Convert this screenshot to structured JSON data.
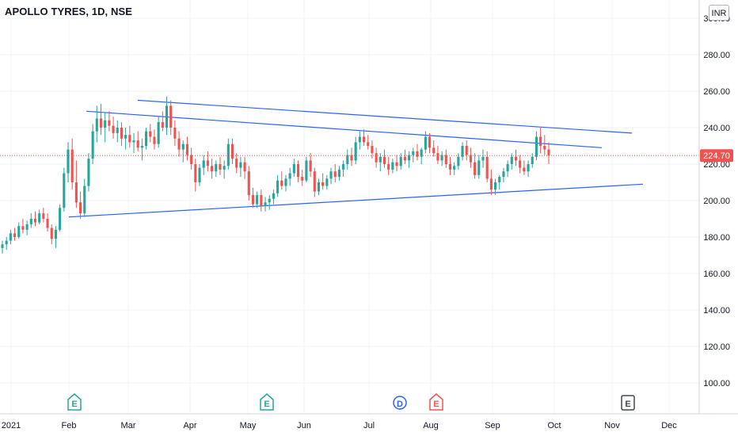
{
  "title": "APOLLO TYRES, 1D, NSE",
  "currency": "INR",
  "last_price_label": "224.70",
  "y_axis_ticks": [
    "300.00",
    "280.00",
    "260.00",
    "240.00",
    "220.00",
    "200.00",
    "180.00",
    "160.00",
    "140.00",
    "120.00",
    "100.00"
  ],
  "x_axis_ticks": [
    "2021",
    "Feb",
    "Mar",
    "Apr",
    "May",
    "Jun",
    "Jul",
    "Aug",
    "Sep",
    "Oct",
    "Nov",
    "Dec"
  ],
  "event_markers": [
    {
      "symbol": "E",
      "month": "Feb",
      "color": "#26a69a"
    },
    {
      "symbol": "E",
      "month": "May",
      "color": "#26a69a"
    },
    {
      "symbol": "D",
      "month": "Jul",
      "color": "#2962ff"
    },
    {
      "symbol": "E",
      "month": "Aug",
      "color": "#ef5350"
    },
    {
      "symbol": "E",
      "month": "Nov",
      "color": "#434651"
    }
  ],
  "colors": {
    "up": "#26a69a",
    "down": "#ef5350",
    "trendline": "#2962ff",
    "price_line": "#ef5350",
    "grid": "#f0f3fa"
  },
  "chart_data": {
    "type": "candlestick",
    "title": "APOLLO TYRES, 1D, NSE",
    "ylim": [
      90,
      305
    ],
    "last_price": 224.7,
    "ohlc": [
      [
        174,
        178,
        171,
        176
      ],
      [
        176,
        180,
        173,
        178
      ],
      [
        178,
        184,
        176,
        182
      ],
      [
        182,
        185,
        178,
        180
      ],
      [
        180,
        188,
        179,
        186
      ],
      [
        186,
        190,
        182,
        184
      ],
      [
        184,
        189,
        181,
        187
      ],
      [
        187,
        193,
        185,
        190
      ],
      [
        190,
        194,
        186,
        188
      ],
      [
        188,
        195,
        187,
        193
      ],
      [
        193,
        196,
        188,
        190
      ],
      [
        190,
        193,
        183,
        185
      ],
      [
        185,
        187,
        176,
        179
      ],
      [
        179,
        186,
        174,
        184
      ],
      [
        184,
        198,
        183,
        196
      ],
      [
        196,
        218,
        194,
        215
      ],
      [
        215,
        232,
        210,
        228
      ],
      [
        228,
        234,
        206,
        210
      ],
      [
        210,
        222,
        196,
        199
      ],
      [
        199,
        205,
        190,
        193
      ],
      [
        193,
        212,
        191,
        208
      ],
      [
        208,
        226,
        205,
        223
      ],
      [
        223,
        242,
        220,
        238
      ],
      [
        238,
        252,
        232,
        245
      ],
      [
        245,
        253,
        236,
        240
      ],
      [
        240,
        248,
        232,
        244
      ],
      [
        244,
        249,
        238,
        241
      ],
      [
        241,
        246,
        234,
        237
      ],
      [
        237,
        244,
        232,
        240
      ],
      [
        240,
        243,
        230,
        234
      ],
      [
        234,
        240,
        228,
        236
      ],
      [
        236,
        241,
        229,
        232
      ],
      [
        232,
        237,
        226,
        233
      ],
      [
        233,
        238,
        227,
        229
      ],
      [
        229,
        234,
        222,
        230
      ],
      [
        230,
        240,
        228,
        238
      ],
      [
        238,
        242,
        232,
        235
      ],
      [
        235,
        239,
        228,
        231
      ],
      [
        231,
        246,
        229,
        243
      ],
      [
        243,
        249,
        238,
        240
      ],
      [
        240,
        257,
        236,
        252
      ],
      [
        252,
        255,
        236,
        240
      ],
      [
        240,
        244,
        230,
        234
      ],
      [
        234,
        238,
        224,
        228
      ],
      [
        228,
        233,
        221,
        231
      ],
      [
        231,
        235,
        222,
        225
      ],
      [
        225,
        229,
        217,
        220
      ],
      [
        220,
        223,
        205,
        210
      ],
      [
        210,
        220,
        208,
        218
      ],
      [
        218,
        225,
        214,
        222
      ],
      [
        222,
        227,
        216,
        219
      ],
      [
        219,
        223,
        212,
        216
      ],
      [
        216,
        222,
        213,
        220
      ],
      [
        220,
        224,
        214,
        217
      ],
      [
        217,
        222,
        212,
        219
      ],
      [
        219,
        234,
        217,
        231
      ],
      [
        231,
        234,
        220,
        223
      ],
      [
        223,
        226,
        215,
        218
      ],
      [
        218,
        224,
        213,
        221
      ],
      [
        221,
        224,
        212,
        216
      ],
      [
        216,
        219,
        200,
        203
      ],
      [
        203,
        207,
        196,
        198
      ],
      [
        198,
        205,
        196,
        203
      ],
      [
        203,
        206,
        194,
        197
      ],
      [
        197,
        202,
        194,
        199
      ],
      [
        199,
        203,
        195,
        201
      ],
      [
        201,
        206,
        198,
        204
      ],
      [
        204,
        214,
        202,
        211
      ],
      [
        211,
        216,
        206,
        208
      ],
      [
        208,
        214,
        205,
        212
      ],
      [
        212,
        218,
        208,
        215
      ],
      [
        215,
        223,
        213,
        220
      ],
      [
        220,
        222,
        210,
        213
      ],
      [
        213,
        217,
        208,
        211
      ],
      [
        211,
        224,
        210,
        222
      ],
      [
        222,
        226,
        213,
        216
      ],
      [
        216,
        218,
        202,
        205
      ],
      [
        205,
        212,
        203,
        210
      ],
      [
        210,
        215,
        206,
        208
      ],
      [
        208,
        214,
        206,
        212
      ],
      [
        212,
        218,
        209,
        216
      ],
      [
        216,
        220,
        210,
        213
      ],
      [
        213,
        219,
        211,
        217
      ],
      [
        217,
        222,
        213,
        220
      ],
      [
        220,
        228,
        217,
        225
      ],
      [
        225,
        229,
        219,
        222
      ],
      [
        222,
        235,
        220,
        232
      ],
      [
        232,
        238,
        228,
        235
      ],
      [
        235,
        239,
        230,
        232
      ],
      [
        232,
        236,
        228,
        230
      ],
      [
        230,
        233,
        223,
        226
      ],
      [
        226,
        229,
        218,
        221
      ],
      [
        221,
        226,
        216,
        224
      ],
      [
        224,
        228,
        218,
        220
      ],
      [
        220,
        224,
        214,
        217
      ],
      [
        217,
        223,
        215,
        221
      ],
      [
        221,
        225,
        216,
        219
      ],
      [
        219,
        226,
        217,
        224
      ],
      [
        224,
        228,
        220,
        222
      ],
      [
        222,
        227,
        218,
        225
      ],
      [
        225,
        229,
        221,
        227
      ],
      [
        227,
        231,
        222,
        224
      ],
      [
        224,
        229,
        220,
        228
      ],
      [
        228,
        238,
        226,
        235
      ],
      [
        235,
        237,
        226,
        229
      ],
      [
        229,
        233,
        224,
        226
      ],
      [
        226,
        230,
        220,
        222
      ],
      [
        222,
        227,
        219,
        225
      ],
      [
        225,
        228,
        218,
        220
      ],
      [
        220,
        224,
        214,
        217
      ],
      [
        217,
        221,
        214,
        219
      ],
      [
        219,
        226,
        217,
        224
      ],
      [
        224,
        232,
        222,
        230
      ],
      [
        230,
        233,
        222,
        225
      ],
      [
        225,
        229,
        218,
        221
      ],
      [
        221,
        226,
        212,
        214
      ],
      [
        214,
        225,
        212,
        222
      ],
      [
        222,
        228,
        218,
        224
      ],
      [
        224,
        227,
        210,
        212
      ],
      [
        212,
        217,
        203,
        206
      ],
      [
        206,
        212,
        203,
        210
      ],
      [
        210,
        214,
        206,
        213
      ],
      [
        213,
        218,
        210,
        216
      ],
      [
        216,
        222,
        213,
        220
      ],
      [
        220,
        226,
        217,
        224
      ],
      [
        224,
        228,
        219,
        222
      ],
      [
        222,
        225,
        215,
        218
      ],
      [
        218,
        222,
        214,
        216
      ],
      [
        216,
        222,
        213,
        220
      ],
      [
        220,
        226,
        218,
        224
      ],
      [
        224,
        238,
        222,
        235
      ],
      [
        235,
        240,
        226,
        230
      ],
      [
        230,
        236,
        225,
        228
      ],
      [
        228,
        232,
        220,
        224.7
      ]
    ],
    "trendlines": [
      {
        "from": [
          "Feb",
          249
        ],
        "to": [
          "Oct",
          229
        ],
        "label": ""
      },
      {
        "from": [
          "Mar",
          255
        ],
        "to": [
          "Nov",
          237
        ],
        "label": ""
      },
      {
        "from": [
          "Feb",
          191
        ],
        "to": [
          "Nov",
          209
        ],
        "label": ""
      }
    ]
  }
}
